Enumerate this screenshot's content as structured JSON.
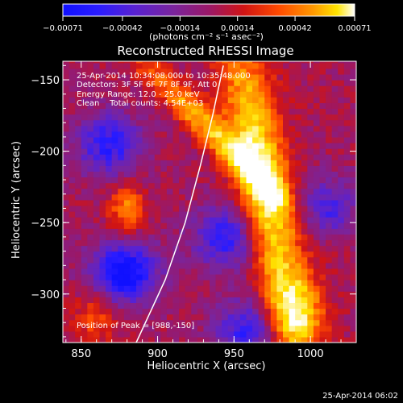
{
  "chart_data": {
    "type": "heatmap",
    "title": "Reconstructed RHESSI Image",
    "xlabel": "Heliocentric X (arcsec)",
    "ylabel": "Heliocentric Y (arcsec)",
    "xlim": [
      838,
      1030
    ],
    "ylim": [
      -334,
      -137
    ],
    "x_ticks": [
      850,
      900,
      950,
      1000
    ],
    "x_tick_labels": [
      "850",
      "900",
      "950",
      "1000"
    ],
    "y_ticks": [
      -150,
      -200,
      -250,
      -300
    ],
    "y_tick_labels": [
      "−150",
      "−200",
      "−250",
      "−300"
    ],
    "colorbar": {
      "ticks": [
        -0.00071,
        -0.00042,
        -0.00014,
        0.00014,
        0.00042,
        0.00071
      ],
      "tick_labels": [
        "−0.00071",
        "−0.00042",
        "−0.00014",
        "0.00014",
        "0.00042",
        "0.00071"
      ],
      "units": "(photons cm⁻² s⁻¹ asec⁻²)",
      "colors": [
        "#1010ff",
        "#2a1cff",
        "#5a22d0",
        "#7a249c",
        "#9a1868",
        "#d01414",
        "#ff4a00",
        "#ff9a00",
        "#ffe400",
        "#ffffff"
      ]
    },
    "info_lines": [
      "25-Apr-2014 10:34:08.000 to 10:35:48.000",
      "Detectors: 3F 5F 6F 7F 8F 9F, Att 0",
      "Energy Range: 12.0 - 25.0 keV",
      "Clean    Total counts: 4.54E+03"
    ],
    "peak_label": "Position of Peak = [988,-150]",
    "footer_date": "25-Apr-2014 06:02",
    "limb_curve": [
      [
        886,
        -334
      ],
      [
        905,
        -290
      ],
      [
        918,
        -250
      ],
      [
        928,
        -210
      ],
      [
        936,
        -175
      ],
      [
        943,
        -140
      ]
    ],
    "bright_ridges": [
      {
        "x": 970,
        "y": -225,
        "width": 18,
        "intensity": 0.0007,
        "orient": "vertical"
      },
      {
        "x": 935,
        "y": -185,
        "width": 14,
        "intensity": 0.0005,
        "orient": "diagonal"
      },
      {
        "x": 880,
        "y": -240,
        "width": 12,
        "intensity": 0.0004,
        "orient": "blob"
      },
      {
        "x": 990,
        "y": -315,
        "width": 18,
        "intensity": 0.0005,
        "orient": "blob"
      },
      {
        "x": 860,
        "y": -315,
        "width": 14,
        "intensity": 0.0003,
        "orient": "blob"
      }
    ],
    "dark_regions": [
      {
        "x": 878,
        "y": -285,
        "intensity": -0.0007
      },
      {
        "x": 868,
        "y": -195,
        "intensity": -0.0005
      },
      {
        "x": 945,
        "y": -260,
        "intensity": -0.0005
      },
      {
        "x": 1010,
        "y": -240,
        "intensity": -0.0004
      },
      {
        "x": 960,
        "y": -325,
        "intensity": -0.0005
      }
    ]
  }
}
